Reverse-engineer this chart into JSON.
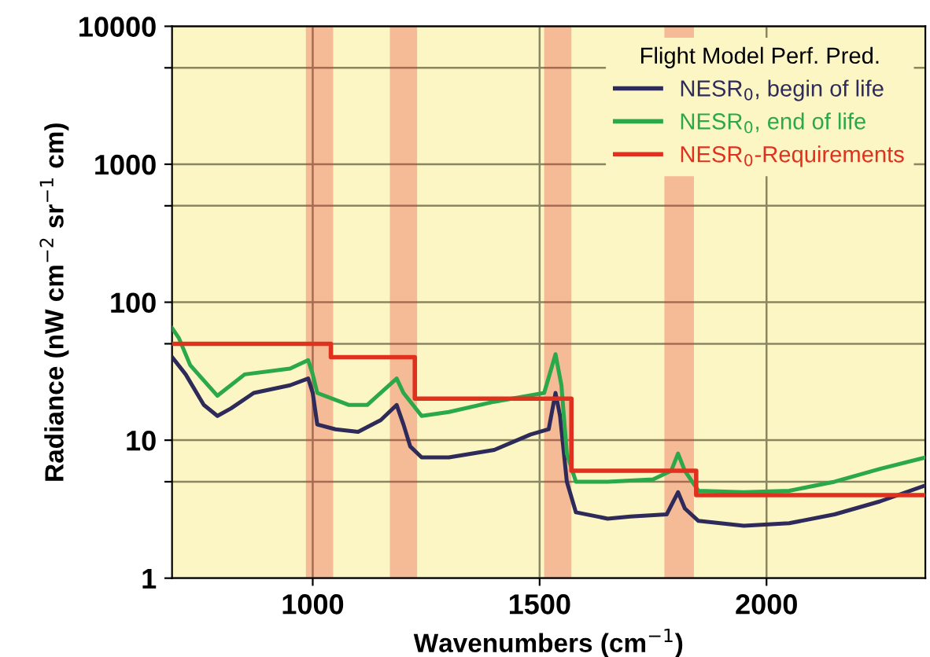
{
  "chart_data": {
    "type": "line",
    "xlabel": "Wavenumbers (cm$^{−1}$)",
    "ylabel": "Radiance (nW cm$^{−2}$ sr$^{−1}$ cm)",
    "legend_title": "Flight Model Perf. Pred.",
    "log": "y",
    "grid": true,
    "legend": "top right",
    "marker": "none",
    "line_style": "solid",
    "xlim": [
      690,
      2350
    ],
    "xticks": [
      1000,
      1500,
      2000
    ],
    "ylim": [
      1,
      10000
    ],
    "yticks": [
      1,
      {
        "value": 5,
        "label": null
      },
      10,
      {
        "value": 50,
        "label": null
      },
      100,
      {
        "value": 500,
        "label": null
      },
      1000,
      {
        "value": 5000,
        "label": null
      },
      10000
    ],
    "series": [
      {
        "name": "NESR$_{0}$, begin of life",
        "color": "#2e2a5a",
        "x": [
          690,
          720,
          760,
          790,
          820,
          870,
          950,
          990,
          1000,
          1010,
          1050,
          1100,
          1150,
          1185,
          1200,
          1215,
          1240,
          1300,
          1400,
          1480,
          1520,
          1535,
          1545,
          1560,
          1580,
          1650,
          1700,
          1780,
          1805,
          1820,
          1850,
          1950,
          2050,
          2150,
          2250,
          2350
        ],
        "values": [
          40,
          30,
          18,
          15,
          17,
          22,
          25,
          28,
          22,
          13,
          12,
          11.5,
          14,
          18,
          13,
          9,
          7.5,
          7.5,
          8.5,
          11,
          12,
          22,
          15,
          5,
          3,
          2.7,
          2.8,
          2.9,
          4.2,
          3.2,
          2.6,
          2.4,
          2.5,
          2.9,
          3.6,
          4.7
        ]
      },
      {
        "name": "NESR$_{0}$, end of life",
        "color": "#2aa84a",
        "x": [
          690,
          705,
          730,
          790,
          850,
          950,
          990,
          1000,
          1010,
          1080,
          1120,
          1185,
          1200,
          1240,
          1300,
          1400,
          1510,
          1535,
          1548,
          1560,
          1580,
          1650,
          1750,
          1790,
          1805,
          1820,
          1850,
          1950,
          2050,
          2150,
          2250,
          2350
        ],
        "values": [
          65,
          55,
          35,
          21,
          30,
          33,
          38,
          30,
          22,
          18,
          18,
          28,
          22,
          15,
          16,
          19,
          22,
          42,
          25,
          8,
          5,
          5,
          5.2,
          6,
          8,
          6,
          4.3,
          4.2,
          4.3,
          5,
          6.2,
          7.5
        ]
      },
      {
        "name": "NESR$_{0}$-Requirements",
        "color": "#e0301e",
        "type": "step",
        "x": [
          690,
          1040,
          1225,
          1570,
          1845,
          2350
        ],
        "values": [
          50,
          40,
          20,
          6,
          4,
          4
        ]
      }
    ],
    "bands": [
      {
        "axis": "x",
        "from": 985,
        "to": 1045,
        "color": "#e8302a"
      },
      {
        "axis": "x",
        "from": 1170,
        "to": 1230,
        "color": "#e8302a"
      },
      {
        "axis": "x",
        "from": 1510,
        "to": 1570,
        "color": "#e8302a"
      },
      {
        "axis": "x",
        "from": 1775,
        "to": 1840,
        "color": "#e8302a"
      }
    ]
  }
}
